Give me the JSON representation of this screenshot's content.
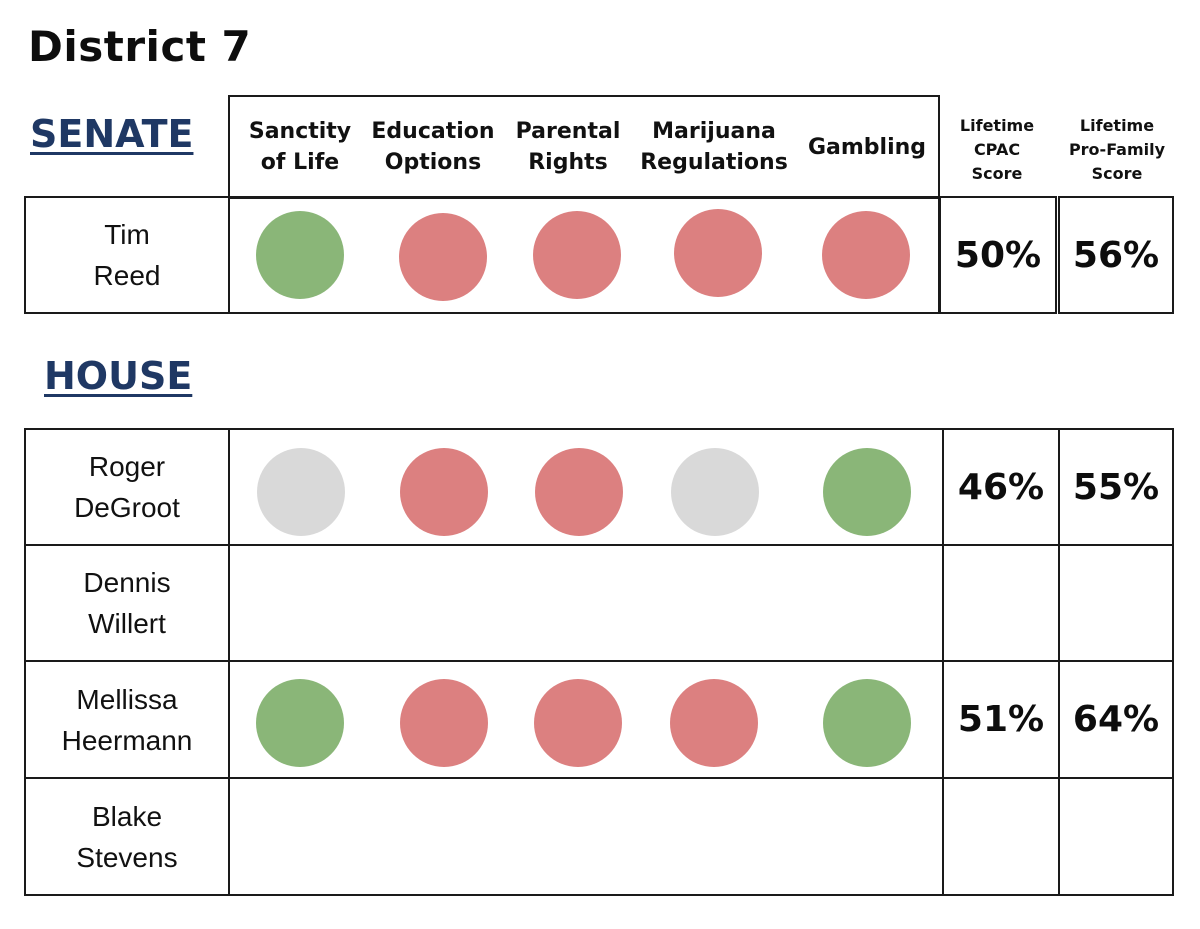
{
  "title": "District 7",
  "colors": {
    "support": "#8ab678",
    "oppose": "#dc8080",
    "neutral": "#d9d9d9",
    "section": "#1f3864"
  },
  "senate": {
    "label": "SENATE",
    "headers": {
      "issues": [
        "Sanctity of Life",
        "Education Options",
        "Parental Rights",
        "Marijuana Regulations",
        "Gambling"
      ],
      "cpac": "Lifetime CPAC Score",
      "profamily": "Lifetime Pro-Family Score"
    },
    "rows": [
      {
        "first": "Tim",
        "last": "Reed",
        "votes": [
          "support",
          "oppose",
          "oppose",
          "oppose",
          "oppose"
        ],
        "cpac": "50%",
        "profamily": "56%"
      }
    ]
  },
  "house": {
    "label": "HOUSE",
    "rows": [
      {
        "first": "Roger",
        "last": "DeGroot",
        "votes": [
          "neutral",
          "oppose",
          "oppose",
          "neutral",
          "support"
        ],
        "cpac": "46%",
        "profamily": "55%"
      },
      {
        "first": "Dennis",
        "last": "Willert",
        "votes": [],
        "cpac": "",
        "profamily": ""
      },
      {
        "first": "Mellissa",
        "last": "Heermann",
        "votes": [
          "support",
          "oppose",
          "oppose",
          "oppose",
          "support"
        ],
        "cpac": "51%",
        "profamily": "64%"
      },
      {
        "first": "Blake",
        "last": "Stevens",
        "votes": [],
        "cpac": "",
        "profamily": ""
      }
    ]
  }
}
